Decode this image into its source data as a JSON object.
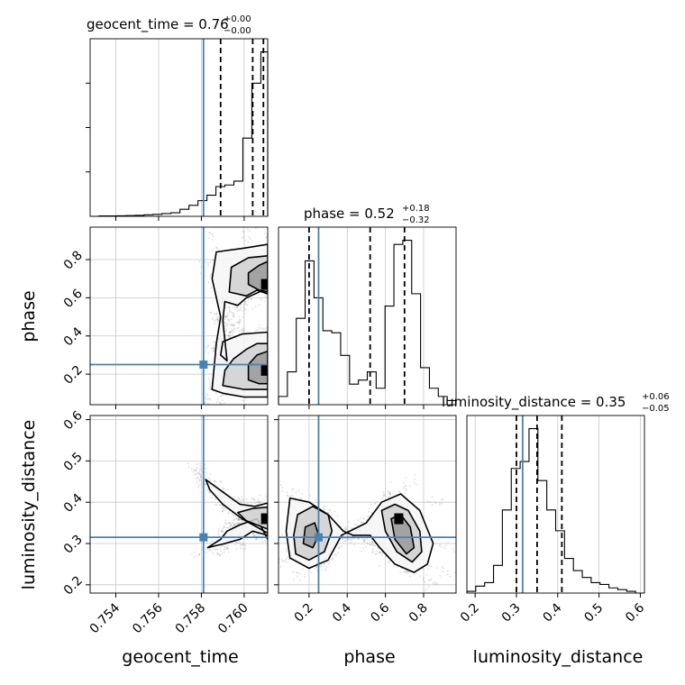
{
  "figure": {
    "type": "corner-plot",
    "grid": true
  },
  "colors": {
    "truth": "#4682b4",
    "hist": "#000000",
    "quantile": "#000000",
    "points": "#9a9a9a"
  },
  "titles": {
    "geocent_time": {
      "prefix": "geocent_time = 0.76",
      "sup": "+0.00",
      "sub": "−0.00"
    },
    "phase": {
      "prefix": "phase = 0.52",
      "sup": "+0.18",
      "sub": "−0.32"
    },
    "luminosity_distance": {
      "prefix": "luminosity_distance = 0.35",
      "sup": "+0.06",
      "sub": "−0.05"
    }
  },
  "axis_labels": {
    "x": [
      "geocent_time",
      "phase",
      "luminosity_distance"
    ],
    "y": [
      "phase",
      "luminosity_distance"
    ]
  },
  "chart_data": {
    "type": "corner",
    "parameters": [
      "geocent_time",
      "phase",
      "luminosity_distance"
    ],
    "ranges": {
      "geocent_time": [
        0.7528,
        0.7611
      ],
      "phase": [
        0.04,
        0.97
      ],
      "luminosity_distance": [
        0.18,
        0.61
      ]
    },
    "ticks": {
      "geocent_time": {
        "values": [
          0.754,
          0.756,
          0.758,
          0.76
        ],
        "labels": [
          "0.754",
          "0.756",
          "0.758",
          "0.760"
        ]
      },
      "phase": {
        "values": [
          0.2,
          0.4,
          0.6,
          0.8
        ],
        "labels": [
          "0.2",
          "0.4",
          "0.6",
          "0.8"
        ]
      },
      "luminosity_distance": {
        "values": [
          0.2,
          0.3,
          0.4,
          0.5,
          0.6
        ],
        "labels": [
          "0.2",
          "0.3",
          "0.4",
          "0.5",
          "0.6"
        ]
      }
    },
    "truths": {
      "geocent_time": 0.7581,
      "phase": 0.25,
      "luminosity_distance": 0.315
    },
    "quantiles": {
      "geocent_time": [
        0.7589,
        0.7604,
        0.7609
      ],
      "phase": [
        0.2,
        0.52,
        0.7
      ],
      "luminosity_distance": [
        0.3,
        0.35,
        0.41
      ]
    },
    "histograms": {
      "geocent_time": {
        "edges": [
          0.7528,
          0.75322,
          0.75364,
          0.75406,
          0.75448,
          0.7549,
          0.75532,
          0.75574,
          0.75616,
          0.75658,
          0.757,
          0.75742,
          0.75784,
          0.75826,
          0.75868,
          0.7591,
          0.75952,
          0.75994,
          0.76036,
          0.76078,
          0.7611
        ],
        "counts": [
          0,
          0.5,
          0.5,
          0.7,
          1,
          1.2,
          2,
          2.5,
          3.5,
          4.5,
          9,
          14,
          20,
          27,
          38,
          40,
          45,
          100,
          170,
          210
        ]
      },
      "phase": {
        "edges": [
          0.04,
          0.0865,
          0.133,
          0.1795,
          0.226,
          0.2725,
          0.319,
          0.3655,
          0.412,
          0.4585,
          0.505,
          0.5515,
          0.598,
          0.6445,
          0.691,
          0.7375,
          0.784,
          0.8305,
          0.877,
          0.9235,
          0.97
        ],
        "counts": [
          4,
          16,
          42,
          70,
          52,
          36,
          35,
          24,
          10,
          12,
          16,
          8,
          48,
          78,
          80,
          54,
          18,
          8,
          4,
          2
        ]
      },
      "luminosity_distance": {
        "edges": [
          0.18,
          0.2015,
          0.223,
          0.2445,
          0.266,
          0.2875,
          0.309,
          0.3305,
          0.352,
          0.3735,
          0.395,
          0.4165,
          0.438,
          0.4595,
          0.481,
          0.5025,
          0.524,
          0.5455,
          0.567,
          0.5885,
          0.61
        ],
        "counts": [
          1,
          4,
          6,
          16,
          48,
          72,
          76,
          95,
          65,
          48,
          36,
          20,
          13,
          9,
          6,
          5,
          3,
          2,
          1,
          0
        ]
      }
    },
    "scatter_2d": [
      {
        "x": "geocent_time",
        "y": "phase",
        "contours": [
          {
            "level": 1,
            "x": [
              0.7585,
              0.759,
              0.76,
              0.7611,
              0.7611,
              0.7599,
              0.759,
              0.7589,
              0.7592,
              0.759,
              0.7591,
              0.7597,
              0.7601,
              0.7611,
              0.7611,
              0.76,
              0.7587,
              0.7585,
              0.7589,
              0.7587,
              0.7585
            ],
            "y": [
              0.12,
              0.1,
              0.08,
              0.08,
              0.42,
              0.41,
              0.37,
              0.3,
              0.27,
              0.48,
              0.58,
              0.56,
              0.6,
              0.65,
              0.88,
              0.86,
              0.84,
              0.7,
              0.5,
              0.36,
              0.12
            ]
          },
          {
            "level": 2,
            "x": [
              0.759,
              0.76,
              0.7611,
              0.7611,
              0.7606,
              0.7601,
              0.7595,
              0.7591,
              0.759
            ],
            "y": [
              0.14,
              0.12,
              0.12,
              0.36,
              0.36,
              0.33,
              0.28,
              0.22,
              0.14
            ]
          },
          {
            "level": 2,
            "x": [
              0.7593,
              0.7601,
              0.7606,
              0.7611,
              0.7611,
              0.7602,
              0.7594,
              0.7593
            ],
            "y": [
              0.63,
              0.61,
              0.64,
              0.62,
              0.82,
              0.81,
              0.76,
              0.63
            ]
          },
          {
            "level": 3,
            "x": [
              0.7602,
              0.7607,
              0.7611,
              0.7611,
              0.7607,
              0.7602,
              0.7602
            ],
            "y": [
              0.67,
              0.64,
              0.63,
              0.79,
              0.77,
              0.73,
              0.67
            ]
          },
          {
            "level": 3,
            "x": [
              0.7602,
              0.7607,
              0.7611,
              0.7611,
              0.7606,
              0.7602,
              0.7602
            ],
            "y": [
              0.17,
              0.15,
              0.15,
              0.32,
              0.3,
              0.25,
              0.17
            ]
          }
        ],
        "peaks": [
          {
            "x": 0.761,
            "y": 0.67
          },
          {
            "x": 0.761,
            "y": 0.22
          }
        ]
      },
      {
        "x": "geocent_time",
        "y": "luminosity_distance",
        "contours": [
          {
            "level": 1,
            "x": [
              0.7582,
              0.759,
              0.7598,
              0.7605,
              0.7611,
              0.7611,
              0.7604,
              0.7598,
              0.7591,
              0.7583,
              0.7589,
              0.7592,
              0.7598,
              0.7606,
              0.7611,
              0.7611,
              0.7599,
              0.759,
              0.7584,
              0.7582
            ],
            "y": [
              0.455,
              0.425,
              0.395,
              0.39,
              0.398,
              0.32,
              0.33,
              0.31,
              0.3,
              0.29,
              0.31,
              0.33,
              0.345,
              0.36,
              0.31,
              0.325,
              0.36,
              0.395,
              0.43,
              0.455
            ]
          },
          {
            "level": 2,
            "x": [
              0.7597,
              0.7604,
              0.7611,
              0.7611,
              0.7606,
              0.7601,
              0.7597
            ],
            "y": [
              0.375,
              0.385,
              0.388,
              0.335,
              0.345,
              0.355,
              0.375
            ]
          }
        ],
        "peaks": [
          {
            "x": 0.761,
            "y": 0.36
          }
        ]
      },
      {
        "x": "phase",
        "y": "luminosity_distance",
        "contours": [
          {
            "level": 1,
            "x": [
              0.1,
              0.2,
              0.3,
              0.37,
              0.5,
              0.58,
              0.68,
              0.78,
              0.85,
              0.82,
              0.75,
              0.65,
              0.57,
              0.52,
              0.43,
              0.38,
              0.3,
              0.2,
              0.1,
              0.08,
              0.1
            ],
            "y": [
              0.265,
              0.24,
              0.26,
              0.32,
              0.35,
              0.4,
              0.42,
              0.38,
              0.3,
              0.25,
              0.23,
              0.25,
              0.29,
              0.32,
              0.32,
              0.33,
              0.37,
              0.4,
              0.41,
              0.33,
              0.265
            ]
          },
          {
            "level": 2,
            "x": [
              0.13,
              0.2,
              0.28,
              0.32,
              0.3,
              0.22,
              0.14,
              0.12,
              0.13
            ],
            "y": [
              0.275,
              0.26,
              0.28,
              0.33,
              0.37,
              0.39,
              0.37,
              0.32,
              0.275
            ]
          },
          {
            "level": 2,
            "x": [
              0.58,
              0.65,
              0.72,
              0.78,
              0.79,
              0.74,
              0.66,
              0.6,
              0.58
            ],
            "y": [
              0.38,
              0.395,
              0.38,
              0.33,
              0.28,
              0.255,
              0.28,
              0.33,
              0.38
            ]
          },
          {
            "level": 3,
            "x": [
              0.17,
              0.22,
              0.25,
              0.23,
              0.18,
              0.17
            ],
            "y": [
              0.3,
              0.29,
              0.32,
              0.35,
              0.34,
              0.3
            ]
          },
          {
            "level": 3,
            "x": [
              0.63,
              0.68,
              0.73,
              0.75,
              0.71,
              0.65,
              0.63
            ],
            "y": [
              0.36,
              0.37,
              0.34,
              0.29,
              0.275,
              0.31,
              0.36
            ]
          }
        ],
        "peaks": [
          {
            "x": 0.67,
            "y": 0.36
          }
        ]
      }
    ]
  }
}
